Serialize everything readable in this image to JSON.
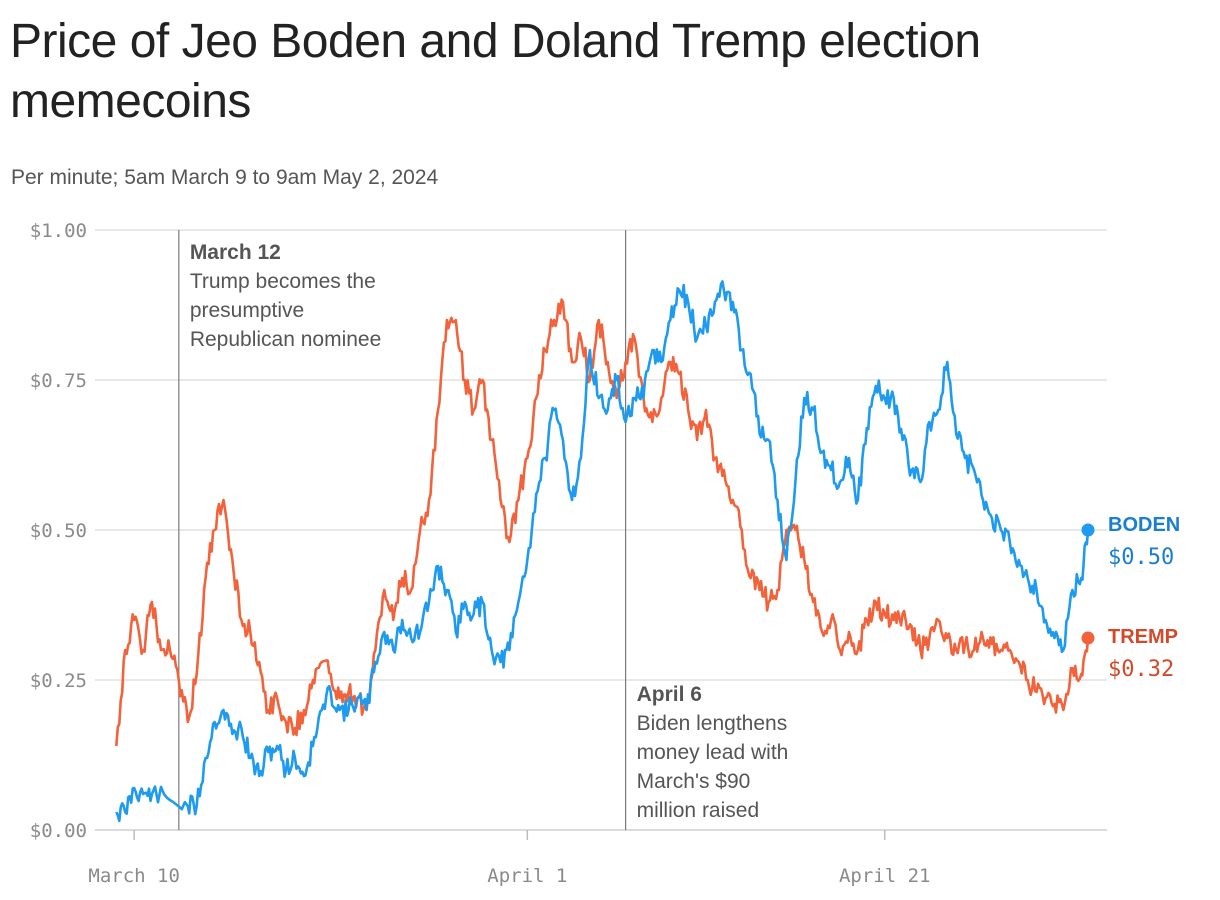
{
  "chart_data": {
    "type": "line",
    "title": "Price of Jeo Boden and Doland Tremp election memecoins",
    "subtitle": "Per minute; 5am March 9 to 9am May 2, 2024",
    "x_unit": "date (2024)",
    "xlim": [
      "2024-03-09",
      "2024-05-02"
    ],
    "ylim": [
      0,
      1
    ],
    "y_ticks": [
      {
        "value": 0,
        "label": "$0.00"
      },
      {
        "value": 0.25,
        "label": "$0.25"
      },
      {
        "value": 0.5,
        "label": "$0.50"
      },
      {
        "value": 0.75,
        "label": "$0.75"
      },
      {
        "value": 1,
        "label": "$1.00"
      }
    ],
    "x_ticks": [
      {
        "date": "2024-03-10",
        "label": "March 10"
      },
      {
        "date": "2024-04-01",
        "label": "April 1"
      },
      {
        "date": "2024-04-21",
        "label": "April 21"
      }
    ],
    "grid": true,
    "annotations": [
      {
        "date": "2024-03-12",
        "head": "March 12",
        "lines": [
          "Trump becomes the",
          "presumptive",
          "Republican nominee"
        ]
      },
      {
        "date": "2024-04-06",
        "head": "April 6",
        "lines": [
          "Biden lengthens",
          "money lead with",
          "March's $90",
          "million raised"
        ]
      }
    ],
    "series": [
      {
        "name": "BODEN",
        "end_label": "$0.50",
        "color": "#1e9bee",
        "label_color": "#1a7fd1",
        "points": [
          [
            "2024-03-09",
            0.03
          ],
          [
            "2024-03-09T12:00",
            0.03
          ],
          [
            "2024-03-10",
            0.07
          ],
          [
            "2024-03-10T12:00",
            0.06
          ],
          [
            "2024-03-11",
            0.06
          ],
          [
            "2024-03-12",
            0.05
          ],
          [
            "2024-03-13",
            0.04
          ],
          [
            "2024-03-13T12:00",
            0.04
          ],
          [
            "2024-03-14",
            0.12
          ],
          [
            "2024-03-14T12:00",
            0.18
          ],
          [
            "2024-03-15",
            0.2
          ],
          [
            "2024-03-15T12:00",
            0.16
          ],
          [
            "2024-03-16",
            0.17
          ],
          [
            "2024-03-16T12:00",
            0.12
          ],
          [
            "2024-03-17",
            0.09
          ],
          [
            "2024-03-17T12:00",
            0.13
          ],
          [
            "2024-03-18",
            0.14
          ],
          [
            "2024-03-18T12:00",
            0.1
          ],
          [
            "2024-03-19",
            0.12
          ],
          [
            "2024-03-19T12:00",
            0.09
          ],
          [
            "2024-03-20",
            0.14
          ],
          [
            "2024-03-20T12:00",
            0.2
          ],
          [
            "2024-03-21",
            0.23
          ],
          [
            "2024-03-21T12:00",
            0.2
          ],
          [
            "2024-03-22",
            0.2
          ],
          [
            "2024-03-22T12:00",
            0.22
          ],
          [
            "2024-03-23",
            0.2
          ],
          [
            "2024-03-23T12:00",
            0.28
          ],
          [
            "2024-03-24",
            0.33
          ],
          [
            "2024-03-24T12:00",
            0.3
          ],
          [
            "2024-03-25",
            0.35
          ],
          [
            "2024-03-25T12:00",
            0.32
          ],
          [
            "2024-03-26",
            0.33
          ],
          [
            "2024-03-26T12:00",
            0.38
          ],
          [
            "2024-03-27",
            0.44
          ],
          [
            "2024-03-27T12:00",
            0.4
          ],
          [
            "2024-03-28",
            0.33
          ],
          [
            "2024-03-28T12:00",
            0.38
          ],
          [
            "2024-03-29",
            0.36
          ],
          [
            "2024-03-29T12:00",
            0.38
          ],
          [
            "2024-03-30",
            0.3
          ],
          [
            "2024-03-30T12:00",
            0.28
          ],
          [
            "2024-03-31",
            0.3
          ],
          [
            "2024-03-31T12:00",
            0.38
          ],
          [
            "2024-04-01",
            0.45
          ],
          [
            "2024-04-01T12:00",
            0.56
          ],
          [
            "2024-04-02",
            0.62
          ],
          [
            "2024-04-02T12:00",
            0.7
          ],
          [
            "2024-04-03",
            0.65
          ],
          [
            "2024-04-03T12:00",
            0.55
          ],
          [
            "2024-04-04",
            0.62
          ],
          [
            "2024-04-04T12:00",
            0.8
          ],
          [
            "2024-04-05",
            0.72
          ],
          [
            "2024-04-05T12:00",
            0.7
          ],
          [
            "2024-04-06",
            0.75
          ],
          [
            "2024-04-06T12:00",
            0.68
          ],
          [
            "2024-04-07",
            0.72
          ],
          [
            "2024-04-07T12:00",
            0.72
          ],
          [
            "2024-04-08",
            0.8
          ],
          [
            "2024-04-08T12:00",
            0.78
          ],
          [
            "2024-04-09",
            0.85
          ],
          [
            "2024-04-09T12:00",
            0.9
          ],
          [
            "2024-04-10",
            0.88
          ],
          [
            "2024-04-10T12:00",
            0.82
          ],
          [
            "2024-04-11",
            0.84
          ],
          [
            "2024-04-11T12:00",
            0.88
          ],
          [
            "2024-04-12",
            0.9
          ],
          [
            "2024-04-12T12:00",
            0.88
          ],
          [
            "2024-04-13",
            0.8
          ],
          [
            "2024-04-13T12:00",
            0.76
          ],
          [
            "2024-04-14",
            0.66
          ],
          [
            "2024-04-14T12:00",
            0.65
          ],
          [
            "2024-04-15",
            0.55
          ],
          [
            "2024-04-15T12:00",
            0.45
          ],
          [
            "2024-04-16",
            0.58
          ],
          [
            "2024-04-16T12:00",
            0.72
          ],
          [
            "2024-04-17",
            0.7
          ],
          [
            "2024-04-17T12:00",
            0.63
          ],
          [
            "2024-04-18",
            0.6
          ],
          [
            "2024-04-18T12:00",
            0.58
          ],
          [
            "2024-04-19",
            0.62
          ],
          [
            "2024-04-19T12:00",
            0.55
          ],
          [
            "2024-04-20",
            0.67
          ],
          [
            "2024-04-20T12:00",
            0.74
          ],
          [
            "2024-04-21",
            0.72
          ],
          [
            "2024-04-21T12:00",
            0.72
          ],
          [
            "2024-04-22",
            0.65
          ],
          [
            "2024-04-22T12:00",
            0.6
          ],
          [
            "2024-04-23",
            0.58
          ],
          [
            "2024-04-23T12:00",
            0.68
          ],
          [
            "2024-04-24",
            0.7
          ],
          [
            "2024-04-24T12:00",
            0.78
          ],
          [
            "2024-04-25",
            0.66
          ],
          [
            "2024-04-25T12:00",
            0.62
          ],
          [
            "2024-04-26",
            0.6
          ],
          [
            "2024-04-26T12:00",
            0.55
          ],
          [
            "2024-04-27",
            0.52
          ],
          [
            "2024-04-27T12:00",
            0.5
          ],
          [
            "2024-04-28",
            0.48
          ],
          [
            "2024-04-28T12:00",
            0.45
          ],
          [
            "2024-04-29",
            0.42
          ],
          [
            "2024-04-29T12:00",
            0.4
          ],
          [
            "2024-04-30",
            0.35
          ],
          [
            "2024-04-30T12:00",
            0.32
          ],
          [
            "2024-05-01",
            0.3
          ],
          [
            "2024-05-01T12:00",
            0.4
          ],
          [
            "2024-05-02",
            0.42
          ],
          [
            "2024-05-02T09:00",
            0.5
          ]
        ]
      },
      {
        "name": "TREMP",
        "end_label": "$0.32",
        "color": "#f2623b",
        "label_color": "#d34a2a",
        "points": [
          [
            "2024-03-09",
            0.14
          ],
          [
            "2024-03-09T12:00",
            0.3
          ],
          [
            "2024-03-10",
            0.35
          ],
          [
            "2024-03-10T12:00",
            0.3
          ],
          [
            "2024-03-11",
            0.38
          ],
          [
            "2024-03-11T12:00",
            0.3
          ],
          [
            "2024-03-12",
            0.3
          ],
          [
            "2024-03-12T12:00",
            0.25
          ],
          [
            "2024-03-13",
            0.18
          ],
          [
            "2024-03-13T12:00",
            0.26
          ],
          [
            "2024-03-14",
            0.42
          ],
          [
            "2024-03-14T12:00",
            0.5
          ],
          [
            "2024-03-15",
            0.55
          ],
          [
            "2024-03-15T12:00",
            0.45
          ],
          [
            "2024-03-16",
            0.35
          ],
          [
            "2024-03-16T12:00",
            0.33
          ],
          [
            "2024-03-17",
            0.28
          ],
          [
            "2024-03-17T12:00",
            0.2
          ],
          [
            "2024-03-18",
            0.22
          ],
          [
            "2024-03-18T12:00",
            0.18
          ],
          [
            "2024-03-19",
            0.17
          ],
          [
            "2024-03-19T12:00",
            0.2
          ],
          [
            "2024-03-20",
            0.25
          ],
          [
            "2024-03-20T12:00",
            0.28
          ],
          [
            "2024-03-21",
            0.26
          ],
          [
            "2024-03-21T12:00",
            0.22
          ],
          [
            "2024-03-22",
            0.23
          ],
          [
            "2024-03-22T12:00",
            0.22
          ],
          [
            "2024-03-23",
            0.2
          ],
          [
            "2024-03-23T12:00",
            0.3
          ],
          [
            "2024-03-24",
            0.4
          ],
          [
            "2024-03-24T12:00",
            0.35
          ],
          [
            "2024-03-25",
            0.42
          ],
          [
            "2024-03-25T12:00",
            0.4
          ],
          [
            "2024-03-26",
            0.5
          ],
          [
            "2024-03-26T12:00",
            0.55
          ],
          [
            "2024-03-27",
            0.7
          ],
          [
            "2024-03-27T12:00",
            0.85
          ],
          [
            "2024-03-28",
            0.85
          ],
          [
            "2024-03-28T12:00",
            0.75
          ],
          [
            "2024-03-29",
            0.7
          ],
          [
            "2024-03-29T12:00",
            0.75
          ],
          [
            "2024-03-30",
            0.65
          ],
          [
            "2024-03-30T12:00",
            0.55
          ],
          [
            "2024-03-31",
            0.48
          ],
          [
            "2024-03-31T12:00",
            0.55
          ],
          [
            "2024-04-01",
            0.62
          ],
          [
            "2024-04-01T12:00",
            0.72
          ],
          [
            "2024-04-02",
            0.8
          ],
          [
            "2024-04-02T12:00",
            0.85
          ],
          [
            "2024-04-03",
            0.88
          ],
          [
            "2024-04-03T12:00",
            0.78
          ],
          [
            "2024-04-04",
            0.82
          ],
          [
            "2024-04-04T12:00",
            0.75
          ],
          [
            "2024-04-05",
            0.85
          ],
          [
            "2024-04-05T12:00",
            0.78
          ],
          [
            "2024-04-06",
            0.72
          ],
          [
            "2024-04-06T12:00",
            0.78
          ],
          [
            "2024-04-07",
            0.82
          ],
          [
            "2024-04-07T12:00",
            0.72
          ],
          [
            "2024-04-08",
            0.68
          ],
          [
            "2024-04-08T12:00",
            0.72
          ],
          [
            "2024-04-09",
            0.78
          ],
          [
            "2024-04-09T12:00",
            0.76
          ],
          [
            "2024-04-10",
            0.7
          ],
          [
            "2024-04-10T12:00",
            0.65
          ],
          [
            "2024-04-11",
            0.7
          ],
          [
            "2024-04-11T12:00",
            0.62
          ],
          [
            "2024-04-12",
            0.6
          ],
          [
            "2024-04-12T12:00",
            0.55
          ],
          [
            "2024-04-13",
            0.5
          ],
          [
            "2024-04-13T12:00",
            0.42
          ],
          [
            "2024-04-14",
            0.4
          ],
          [
            "2024-04-14T12:00",
            0.38
          ],
          [
            "2024-04-15",
            0.4
          ],
          [
            "2024-04-15T12:00",
            0.5
          ],
          [
            "2024-04-16",
            0.5
          ],
          [
            "2024-04-16T12:00",
            0.45
          ],
          [
            "2024-04-17",
            0.38
          ],
          [
            "2024-04-17T12:00",
            0.33
          ],
          [
            "2024-04-18",
            0.35
          ],
          [
            "2024-04-18T12:00",
            0.3
          ],
          [
            "2024-04-19",
            0.33
          ],
          [
            "2024-04-19T12:00",
            0.3
          ],
          [
            "2024-04-20",
            0.35
          ],
          [
            "2024-04-20T12:00",
            0.38
          ],
          [
            "2024-04-21",
            0.36
          ],
          [
            "2024-04-21T12:00",
            0.35
          ],
          [
            "2024-04-22",
            0.36
          ],
          [
            "2024-04-22T12:00",
            0.34
          ],
          [
            "2024-04-23",
            0.3
          ],
          [
            "2024-04-23T12:00",
            0.32
          ],
          [
            "2024-04-24",
            0.35
          ],
          [
            "2024-04-24T12:00",
            0.32
          ],
          [
            "2024-04-25",
            0.3
          ],
          [
            "2024-04-25T12:00",
            0.31
          ],
          [
            "2024-04-26",
            0.3
          ],
          [
            "2024-04-26T12:00",
            0.32
          ],
          [
            "2024-04-27",
            0.31
          ],
          [
            "2024-04-27T12:00",
            0.3
          ],
          [
            "2024-04-28",
            0.3
          ],
          [
            "2024-04-28T12:00",
            0.28
          ],
          [
            "2024-04-29",
            0.25
          ],
          [
            "2024-04-29T12:00",
            0.23
          ],
          [
            "2024-04-30",
            0.22
          ],
          [
            "2024-04-30T12:00",
            0.21
          ],
          [
            "2024-05-01",
            0.2
          ],
          [
            "2024-05-01T12:00",
            0.27
          ],
          [
            "2024-05-02",
            0.26
          ],
          [
            "2024-05-02T09:00",
            0.32
          ]
        ]
      }
    ]
  }
}
